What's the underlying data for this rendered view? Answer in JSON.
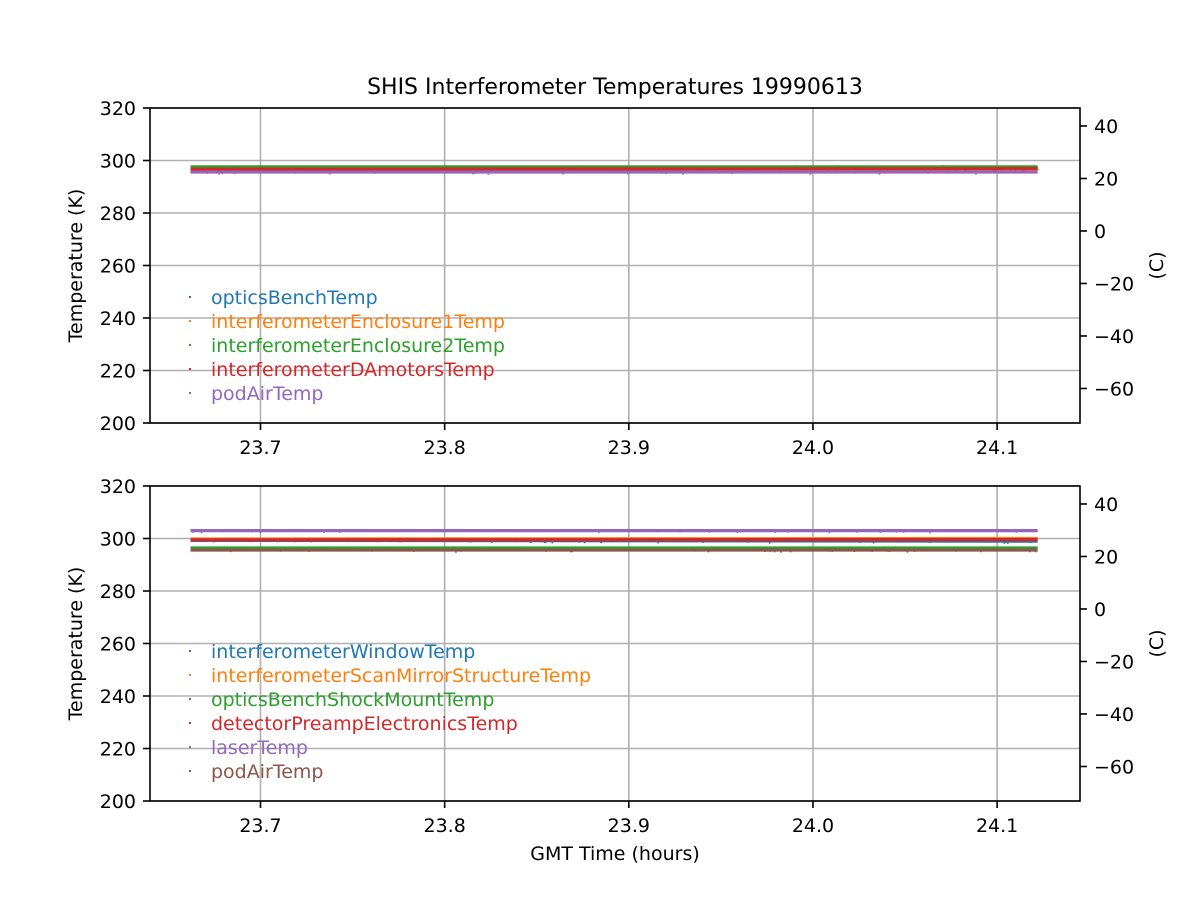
{
  "chart_data": [
    {
      "type": "scatter",
      "title": "SHIS Interferometer Temperatures 19990613",
      "xlabel": "",
      "ylabel": "Temperature (K)",
      "y2label": "(C)",
      "xlim": [
        23.64,
        24.145
      ],
      "ylim": [
        200,
        320
      ],
      "y2lim": [
        -73.15,
        46.85
      ],
      "x_ticks": [
        "23.7",
        "23.8",
        "23.9",
        "24.0",
        "24.1"
      ],
      "x_tick_values": [
        23.7,
        23.8,
        23.9,
        24.0,
        24.1
      ],
      "y_ticks": [
        "200",
        "220",
        "240",
        "260",
        "280",
        "300",
        "320"
      ],
      "y_tick_values": [
        200,
        220,
        240,
        260,
        280,
        300,
        320
      ],
      "y2_ticks": [
        "−60",
        "−40",
        "−20",
        "0",
        "20",
        "40"
      ],
      "y2_tick_values": [
        -60,
        -40,
        -20,
        0,
        20,
        40
      ],
      "grid": true,
      "legend_position": "lower-left",
      "x_range": [
        23.662,
        24.122
      ],
      "series": [
        {
          "name": "opticsBenchTemp",
          "color": "#1f77b4",
          "values": [
            297.0,
            297.0
          ]
        },
        {
          "name": "interferometerEnclosure1Temp",
          "color": "#ff7f0e",
          "values": [
            296.9,
            296.9
          ]
        },
        {
          "name": "interferometerEnclosure2Temp",
          "color": "#2ca02c",
          "values": [
            297.6,
            297.6
          ]
        },
        {
          "name": "interferometerDAmotorsTemp",
          "color": "#d62728",
          "values": [
            296.7,
            296.9
          ]
        },
        {
          "name": "podAirTemp",
          "color": "#9467bd",
          "values": [
            295.6,
            295.6
          ]
        }
      ]
    },
    {
      "type": "scatter",
      "title": "",
      "xlabel": "GMT Time (hours)",
      "ylabel": "Temperature (K)",
      "y2label": "(C)",
      "xlim": [
        23.64,
        24.145
      ],
      "ylim": [
        200,
        320
      ],
      "y2lim": [
        -73.15,
        46.85
      ],
      "x_ticks": [
        "23.7",
        "23.8",
        "23.9",
        "24.0",
        "24.1"
      ],
      "x_tick_values": [
        23.7,
        23.8,
        23.9,
        24.0,
        24.1
      ],
      "y_ticks": [
        "200",
        "220",
        "240",
        "260",
        "280",
        "300",
        "320"
      ],
      "y_tick_values": [
        200,
        220,
        240,
        260,
        280,
        300,
        320
      ],
      "y2_ticks": [
        "−60",
        "−40",
        "−20",
        "0",
        "20",
        "40"
      ],
      "y2_tick_values": [
        -60,
        -40,
        -20,
        0,
        20,
        40
      ],
      "grid": true,
      "legend_position": "lower-left",
      "x_range": [
        23.662,
        24.122
      ],
      "series": [
        {
          "name": "interferometerWindowTemp",
          "color": "#1f77b4",
          "values": [
            299.3,
            299.0
          ]
        },
        {
          "name": "interferometerScanMirrorStructureTemp",
          "color": "#ff7f0e",
          "values": [
            299.8,
            300.0
          ]
        },
        {
          "name": "opticsBenchShockMountTemp",
          "color": "#2ca02c",
          "values": [
            296.4,
            296.4
          ]
        },
        {
          "name": "detectorPreampElectronicsTemp",
          "color": "#d62728",
          "values": [
            299.5,
            299.6
          ]
        },
        {
          "name": "laserTemp",
          "color": "#9467bd",
          "values": [
            303.0,
            303.0
          ]
        },
        {
          "name": "podAirTemp",
          "color": "#8c564b",
          "values": [
            295.6,
            295.6
          ]
        }
      ]
    }
  ]
}
